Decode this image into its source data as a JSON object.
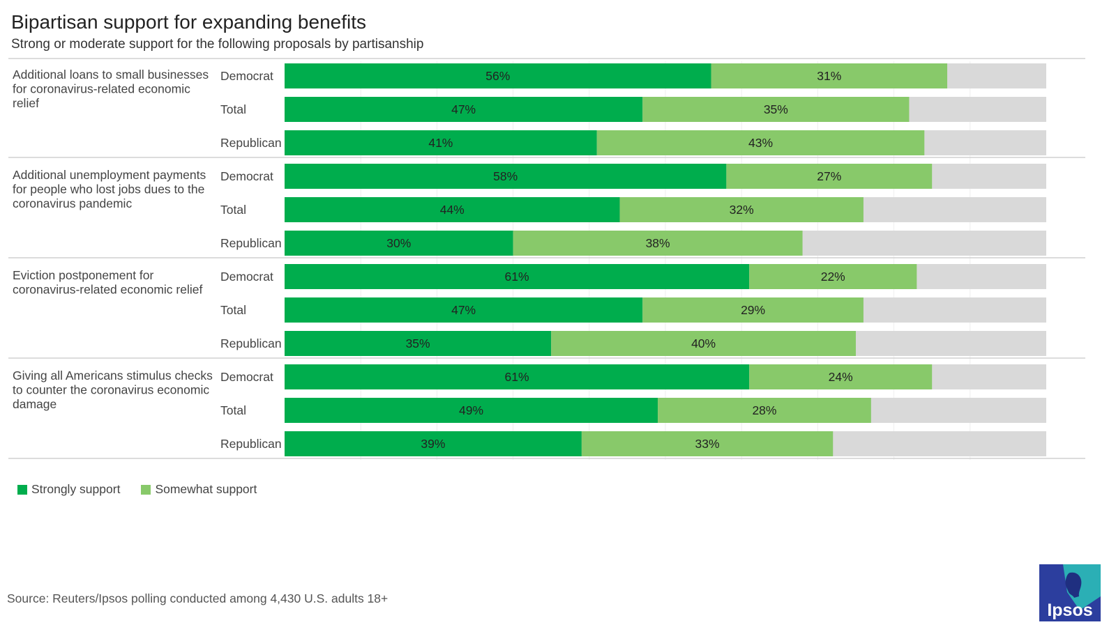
{
  "header": {
    "title": "Bipartisan support for expanding benefits",
    "subtitle": "Strong or moderate support for the following proposals by partisanship"
  },
  "chart_data": {
    "type": "bar",
    "orientation": "horizontal",
    "stacked": true,
    "title": "Bipartisan support for expanding benefits",
    "subtitle": "Strong or moderate support for the following proposals by partisanship",
    "xlim": [
      0,
      100
    ],
    "grid": true,
    "legend_position": "bottom-left",
    "series": [
      {
        "name": "Strongly support",
        "color": "#00AD4D"
      },
      {
        "name": "Somewhat support",
        "color": "#88C96A"
      }
    ],
    "remainder_color": "#D9D9D9",
    "groups": [
      {
        "label": "Additional loans to small businesses for coronavirus-related economic relief",
        "label_lines": [
          "Additional loans to small businesses",
          "for coronavirus-related economic",
          "relief"
        ],
        "bars": [
          {
            "category": "Democrat",
            "strongly": 56,
            "somewhat": 31
          },
          {
            "category": "Total",
            "strongly": 47,
            "somewhat": 35
          },
          {
            "category": "Republican",
            "strongly": 41,
            "somewhat": 43
          }
        ]
      },
      {
        "label": "Additional unemployment payments for people who lost jobs dues to the coronavirus pandemic",
        "label_lines": [
          "Additional unemployment payments",
          "for people who lost jobs dues to the",
          "coronavirus pandemic"
        ],
        "bars": [
          {
            "category": "Democrat",
            "strongly": 58,
            "somewhat": 27
          },
          {
            "category": "Total",
            "strongly": 44,
            "somewhat": 32
          },
          {
            "category": "Republican",
            "strongly": 30,
            "somewhat": 38
          }
        ]
      },
      {
        "label": "Eviction postponement for coronavirus-related economic relief",
        "label_lines": [
          "Eviction postponement for",
          "coronavirus-related economic relief"
        ],
        "bars": [
          {
            "category": "Democrat",
            "strongly": 61,
            "somewhat": 22
          },
          {
            "category": "Total",
            "strongly": 47,
            "somewhat": 29
          },
          {
            "category": "Republican",
            "strongly": 35,
            "somewhat": 40
          }
        ]
      },
      {
        "label": "Giving all Americans stimulus checks to counter the coronavirus economic damage",
        "label_lines": [
          "Giving all Americans stimulus checks",
          "to counter the coronavirus economic",
          "damage"
        ],
        "bars": [
          {
            "category": "Democrat",
            "strongly": 61,
            "somewhat": 24
          },
          {
            "category": "Total",
            "strongly": 49,
            "somewhat": 28
          },
          {
            "category": "Republican",
            "strongly": 39,
            "somewhat": 33
          }
        ]
      }
    ]
  },
  "legend": {
    "strongly_label": "Strongly support",
    "somewhat_label": "Somewhat support",
    "strongly_color": "#00AD4D",
    "somewhat_color": "#88C96A"
  },
  "footer": {
    "source": "Source: Reuters/Ipsos polling conducted among 4,430 U.S. adults 18+"
  },
  "logo": {
    "text": "Ipsos",
    "icon": "ipsos-logo-icon"
  }
}
